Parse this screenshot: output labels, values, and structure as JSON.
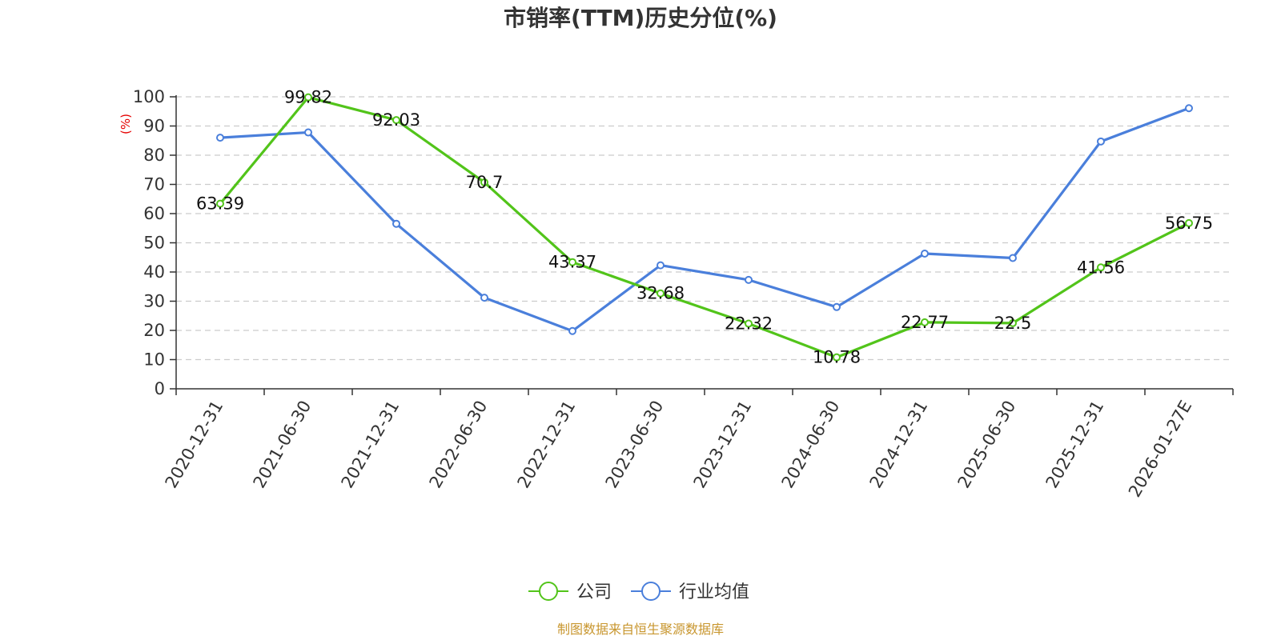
{
  "chart_data": {
    "type": "line",
    "title": "市销率(TTM)历史分位(%)",
    "ylabel": "(%)",
    "xlabel": "",
    "categories": [
      "2020-12-31",
      "2021-06-30",
      "2021-12-31",
      "2022-06-30",
      "2022-12-31",
      "2023-06-30",
      "2023-12-31",
      "2024-06-30",
      "2024-12-31",
      "2025-06-30",
      "2025-12-31",
      "2026-01-27E"
    ],
    "ylim": [
      0,
      100
    ],
    "yticks": [
      0,
      10,
      20,
      30,
      40,
      50,
      60,
      70,
      80,
      90,
      100
    ],
    "grid": true,
    "legend_position": "bottom-center",
    "series": [
      {
        "name": "公司",
        "color": "#52c41a",
        "show_labels": true,
        "values": [
          63.39,
          99.82,
          92.03,
          70.7,
          43.37,
          32.68,
          22.32,
          10.78,
          22.77,
          22.5,
          41.56,
          56.75
        ],
        "labels": [
          "63.39",
          "99.82",
          "92.03",
          "70.7",
          "43.37",
          "32.68",
          "22.32",
          "10.78",
          "22.77",
          "22.5",
          "41.56",
          "56.75"
        ]
      },
      {
        "name": "行业均值",
        "color": "#4a7fdb",
        "show_labels": false,
        "values": [
          86.0,
          87.8,
          56.5,
          31.2,
          19.8,
          42.3,
          37.3,
          28.0,
          46.3,
          44.8,
          84.7,
          96.1
        ]
      }
    ]
  },
  "colors": {
    "ylabel": "#e60000",
    "source": "#c8962e",
    "grid": "#cccccc",
    "axis": "#333333"
  },
  "source_text": "制图数据来自恒生聚源数据库"
}
